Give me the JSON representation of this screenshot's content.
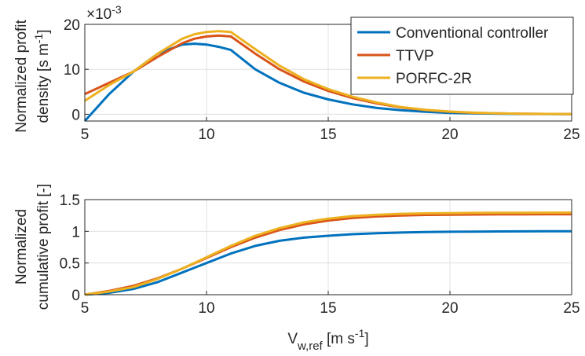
{
  "chart_data": [
    {
      "type": "line",
      "ylabel_line1": "Normalized profit",
      "ylabel_line2_main": "density [s m",
      "ylabel_line2_sup": "-1",
      "ylabel_line2_end": "]",
      "exponent_prefix": "×10",
      "exponent_power": "-3",
      "xlim": [
        5,
        25
      ],
      "ylim": [
        -1.5,
        20
      ],
      "xticks": [
        "5",
        "10",
        "15",
        "20",
        "25"
      ],
      "yticks": [
        "0",
        "10",
        "20"
      ],
      "grid": true,
      "legend_position": "top-right",
      "x": [
        5,
        6,
        7,
        8,
        9,
        9.5,
        10,
        11,
        12,
        13,
        14,
        15,
        16,
        17,
        18,
        19,
        20,
        21,
        22,
        23,
        24,
        25
      ],
      "series": [
        {
          "name": "Conventional controller",
          "color": "#0072BD",
          "x": [
            5,
            6,
            7,
            8,
            9,
            9.5,
            10,
            10.5,
            11,
            12,
            13,
            14,
            15,
            16,
            17,
            18,
            19,
            20,
            21,
            22,
            23,
            24,
            25
          ],
          "values": [
            -1.5,
            4.5,
            9.5,
            13.5,
            15.5,
            15.7,
            15.5,
            15.0,
            14.3,
            10.0,
            7.0,
            4.8,
            3.3,
            2.2,
            1.4,
            0.9,
            0.55,
            0.3,
            0.2,
            0.12,
            0.08,
            0.05,
            0.03
          ]
        },
        {
          "name": "TTVP",
          "color": "#D95319",
          "x": [
            5,
            6,
            7,
            8,
            9,
            9.5,
            10,
            10.5,
            11,
            12,
            13,
            14,
            15,
            16,
            17,
            18,
            19,
            20,
            21,
            22,
            23,
            24,
            25
          ],
          "values": [
            4.5,
            7.0,
            9.5,
            12.8,
            15.8,
            16.8,
            17.3,
            17.5,
            17.3,
            13.5,
            10.0,
            7.3,
            5.2,
            3.6,
            2.4,
            1.5,
            0.95,
            0.55,
            0.32,
            0.2,
            0.12,
            0.08,
            0.05
          ]
        },
        {
          "name": "PORFC-2R",
          "color": "#EDB120",
          "x": [
            5,
            6,
            7,
            8,
            9,
            9.5,
            10,
            10.5,
            11,
            12,
            13,
            14,
            15,
            16,
            17,
            18,
            19,
            20,
            21,
            22,
            23,
            24,
            25
          ],
          "values": [
            3.0,
            6.5,
            9.5,
            13.5,
            16.8,
            17.8,
            18.3,
            18.5,
            18.3,
            14.5,
            10.8,
            7.8,
            5.6,
            3.9,
            2.6,
            1.6,
            1.0,
            0.6,
            0.35,
            0.22,
            0.13,
            0.08,
            0.05
          ]
        }
      ]
    },
    {
      "type": "line",
      "ylabel_line1": "Normalized",
      "ylabel_line2_main": "cumulative profit [-]",
      "xlabel_main": "V",
      "xlabel_sub": "w,ref",
      "xlabel_unit_main": " [m s",
      "xlabel_unit_sup": "-1",
      "xlabel_unit_end": "]",
      "xlim": [
        5,
        25
      ],
      "ylim": [
        0,
        1.5
      ],
      "xticks": [
        "5",
        "10",
        "15",
        "20",
        "25"
      ],
      "yticks": [
        "0",
        "0.5",
        "1",
        "1.5"
      ],
      "grid": true,
      "series": [
        {
          "name": "Conventional controller",
          "color": "#0072BD",
          "x": [
            5,
            6,
            7,
            8,
            9,
            10,
            11,
            12,
            13,
            14,
            15,
            16,
            17,
            18,
            19,
            20,
            21,
            22,
            23,
            24,
            25
          ],
          "values": [
            0,
            0.03,
            0.09,
            0.2,
            0.35,
            0.5,
            0.65,
            0.77,
            0.85,
            0.9,
            0.93,
            0.955,
            0.97,
            0.98,
            0.988,
            0.993,
            0.996,
            0.998,
            0.999,
            1.0,
            1.0
          ]
        },
        {
          "name": "TTVP",
          "color": "#D95319",
          "x": [
            5,
            6,
            7,
            8,
            9,
            10,
            11,
            12,
            13,
            14,
            15,
            16,
            17,
            18,
            19,
            20,
            21,
            22,
            23,
            24,
            25
          ],
          "values": [
            0,
            0.06,
            0.14,
            0.26,
            0.41,
            0.58,
            0.75,
            0.9,
            1.02,
            1.11,
            1.17,
            1.21,
            1.235,
            1.25,
            1.258,
            1.262,
            1.265,
            1.267,
            1.268,
            1.269,
            1.27
          ]
        },
        {
          "name": "PORFC-2R",
          "color": "#EDB120",
          "x": [
            5,
            6,
            7,
            8,
            9,
            10,
            11,
            12,
            13,
            14,
            15,
            16,
            17,
            18,
            19,
            20,
            21,
            22,
            23,
            24,
            25
          ],
          "values": [
            0,
            0.05,
            0.12,
            0.25,
            0.41,
            0.59,
            0.77,
            0.93,
            1.05,
            1.14,
            1.2,
            1.24,
            1.26,
            1.275,
            1.283,
            1.287,
            1.29,
            1.292,
            1.293,
            1.294,
            1.295
          ]
        }
      ]
    }
  ]
}
